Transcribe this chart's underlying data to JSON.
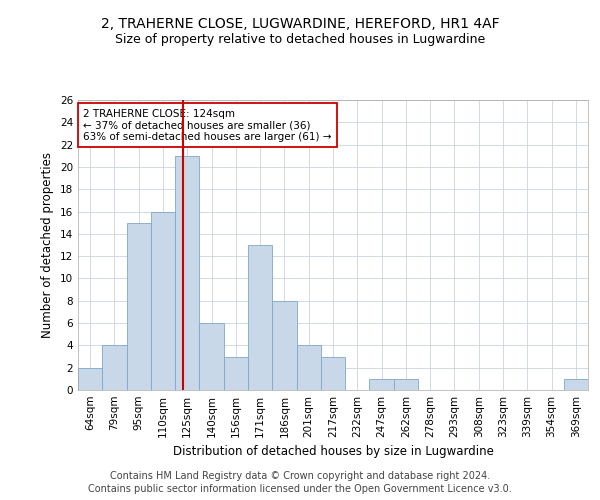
{
  "title": "2, TRAHERNE CLOSE, LUGWARDINE, HEREFORD, HR1 4AF",
  "subtitle": "Size of property relative to detached houses in Lugwardine",
  "xlabel": "Distribution of detached houses by size in Lugwardine",
  "ylabel": "Number of detached properties",
  "categories": [
    "64sqm",
    "79sqm",
    "95sqm",
    "110sqm",
    "125sqm",
    "140sqm",
    "156sqm",
    "171sqm",
    "186sqm",
    "201sqm",
    "217sqm",
    "232sqm",
    "247sqm",
    "262sqm",
    "278sqm",
    "293sqm",
    "308sqm",
    "323sqm",
    "339sqm",
    "354sqm",
    "369sqm"
  ],
  "values": [
    2,
    4,
    15,
    16,
    21,
    6,
    3,
    13,
    8,
    4,
    3,
    0,
    1,
    1,
    0,
    0,
    0,
    0,
    0,
    0,
    1
  ],
  "bar_color": "#c8d8e8",
  "bar_edgecolor": "#7fa8c8",
  "vline_x": 3.82,
  "vline_color": "#cc0000",
  "annotation_text": "2 TRAHERNE CLOSE: 124sqm\n← 37% of detached houses are smaller (36)\n63% of semi-detached houses are larger (61) →",
  "annotation_box_color": "#cc0000",
  "ylim": [
    0,
    26
  ],
  "yticks": [
    0,
    2,
    4,
    6,
    8,
    10,
    12,
    14,
    16,
    18,
    20,
    22,
    24,
    26
  ],
  "footer_line1": "Contains HM Land Registry data © Crown copyright and database right 2024.",
  "footer_line2": "Contains public sector information licensed under the Open Government Licence v3.0.",
  "bg_color": "#ffffff",
  "grid_color": "#c8d4e0",
  "title_fontsize": 10,
  "subtitle_fontsize": 9,
  "xlabel_fontsize": 8.5,
  "ylabel_fontsize": 8.5,
  "tick_fontsize": 7.5,
  "annotation_fontsize": 7.5,
  "footer_fontsize": 7
}
